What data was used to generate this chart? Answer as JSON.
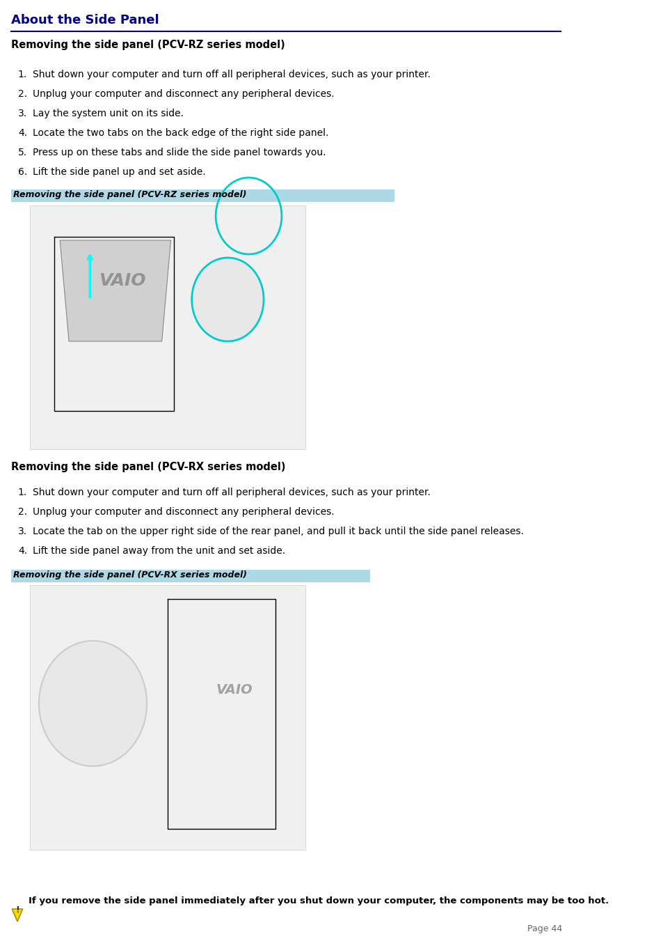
{
  "title": "About the Side Panel",
  "title_color": "#00008B",
  "title_underline_color": "#00008B",
  "bg_color": "#FFFFFF",
  "section1_heading": "Removing the side panel (PCV-RZ series model)",
  "section1_steps": [
    "Shut down your computer and turn off all peripheral devices, such as your printer.",
    "Unplug your computer and disconnect any peripheral devices.",
    "Lay the system unit on its side.",
    "Locate the two tabs on the back edge of the right side panel.",
    "Press up on these tabs and slide the side panel towards you.",
    "Lift the side panel up and set aside."
  ],
  "caption1": "Removing the side panel (PCV-RZ series model)",
  "caption1_bg": "#ADD8E6",
  "section2_heading": "Removing the side panel (PCV-RX series model)",
  "section2_steps": [
    "Shut down your computer and turn off all peripheral devices, such as your printer.",
    "Unplug your computer and disconnect any peripheral devices.",
    "Locate the tab on the upper right side of the rear panel, and pull it back until the side panel releases.",
    "Lift the side panel away from the unit and set aside."
  ],
  "caption2": "Removing the side panel (PCV-RX series model)",
  "caption2_bg": "#ADD8E6",
  "warning_text": "If you remove the side panel immediately after you shut down your computer, the components may be too hot.",
  "page_label": "Page 44"
}
